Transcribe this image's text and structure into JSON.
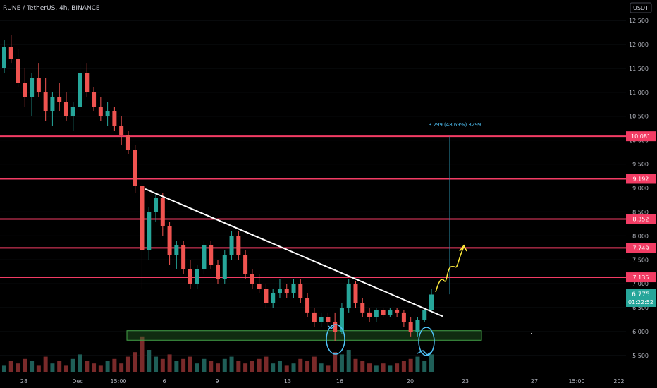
{
  "header": {
    "symbol": "RUNE / TetherUS, 4h, BINANCE",
    "currency_button": "USDT"
  },
  "colors": {
    "background": "#000000",
    "up": "#26a69a",
    "down": "#ef5350",
    "level_line": "#f23c64",
    "trendline": "#ffffff",
    "support_zone": "#2e7d32",
    "projection": "#ffeb3b",
    "annotation_circle": "#4fc3f7",
    "measure": "#2a8faa",
    "last_price_bg": "#26a69a"
  },
  "chart_data": {
    "type": "candlestick",
    "symbol": "RUNE / TetherUS",
    "interval": "4h",
    "exchange": "BINANCE",
    "y_range": [
      5.2,
      12.75
    ],
    "y_ticks": [
      "12.500",
      "12.000",
      "11.500",
      "11.000",
      "10.500",
      "10.000",
      "9.500",
      "9.000",
      "8.500",
      "8.000",
      "7.500",
      "7.000",
      "6.500",
      "6.000",
      "5.500"
    ],
    "x_ticks": [
      "28",
      "Dec",
      "15:00",
      "6",
      "9",
      "13",
      "16",
      "20",
      "23",
      "27",
      "15:00",
      "202"
    ],
    "horizontal_levels": [
      "10.081",
      "9.192",
      "8.352",
      "7.749",
      "7.135"
    ],
    "last_price": "6.775",
    "countdown": "01:22:52",
    "measure_label": "3.299 (48.69%) 3299",
    "support_zone": {
      "from": 5.82,
      "to": 6.02
    },
    "trendline": {
      "from": {
        "date": "Dec 4",
        "price": 8.98
      },
      "to": {
        "date": "Dec 21",
        "price": 6.32
      }
    },
    "candles_ohlc_approx": [
      [
        11.5,
        12.1,
        11.4,
        11.95
      ],
      [
        11.95,
        12.2,
        11.6,
        11.7
      ],
      [
        11.7,
        11.9,
        11.1,
        11.2
      ],
      [
        11.2,
        11.5,
        10.7,
        10.9
      ],
      [
        10.9,
        11.4,
        10.5,
        11.3
      ],
      [
        11.3,
        11.6,
        10.9,
        11.0
      ],
      [
        11.0,
        11.3,
        10.4,
        10.6
      ],
      [
        10.6,
        11.0,
        10.3,
        10.9
      ],
      [
        10.9,
        11.2,
        10.6,
        10.8
      ],
      [
        10.8,
        11.0,
        10.4,
        10.5
      ],
      [
        10.5,
        10.8,
        10.2,
        10.7
      ],
      [
        10.7,
        11.6,
        10.6,
        11.4
      ],
      [
        11.4,
        11.6,
        10.9,
        11.0
      ],
      [
        11.0,
        11.1,
        10.6,
        10.7
      ],
      [
        10.7,
        10.9,
        10.4,
        10.5
      ],
      [
        10.5,
        10.8,
        10.3,
        10.6
      ],
      [
        10.6,
        10.7,
        10.2,
        10.3
      ],
      [
        10.3,
        10.5,
        9.9,
        10.1
      ],
      [
        10.1,
        10.2,
        9.7,
        9.8
      ],
      [
        9.8,
        9.9,
        8.9,
        9.05
      ],
      [
        9.05,
        9.1,
        6.9,
        7.7
      ],
      [
        7.7,
        8.6,
        7.5,
        8.5
      ],
      [
        8.5,
        8.9,
        8.3,
        8.8
      ],
      [
        8.8,
        8.9,
        8.0,
        8.2
      ],
      [
        8.2,
        8.3,
        7.4,
        7.6
      ],
      [
        7.6,
        7.9,
        7.3,
        7.8
      ],
      [
        7.8,
        7.9,
        7.2,
        7.3
      ],
      [
        7.3,
        7.5,
        6.9,
        7.0
      ],
      [
        7.0,
        7.4,
        6.9,
        7.3
      ],
      [
        7.3,
        7.9,
        7.2,
        7.8
      ],
      [
        7.8,
        7.9,
        7.3,
        7.4
      ],
      [
        7.4,
        7.5,
        7.0,
        7.1
      ],
      [
        7.1,
        7.7,
        7.0,
        7.6
      ],
      [
        7.6,
        8.1,
        7.5,
        8.0
      ],
      [
        8.0,
        8.1,
        7.5,
        7.6
      ],
      [
        7.6,
        7.7,
        7.1,
        7.2
      ],
      [
        7.2,
        7.3,
        6.9,
        7.0
      ],
      [
        7.0,
        7.2,
        6.8,
        6.9
      ],
      [
        6.9,
        7.0,
        6.5,
        6.6
      ],
      [
        6.6,
        6.9,
        6.5,
        6.8
      ],
      [
        6.8,
        7.1,
        6.7,
        6.9
      ],
      [
        6.9,
        7.0,
        6.7,
        6.8
      ],
      [
        6.8,
        7.1,
        6.7,
        7.0
      ],
      [
        7.0,
        7.1,
        6.6,
        6.7
      ],
      [
        6.7,
        6.8,
        6.3,
        6.4
      ],
      [
        6.4,
        6.5,
        6.1,
        6.2
      ],
      [
        6.2,
        6.4,
        6.1,
        6.3
      ],
      [
        6.3,
        6.4,
        6.1,
        6.2
      ],
      [
        6.2,
        6.4,
        5.8,
        6.0
      ],
      [
        6.0,
        6.6,
        5.95,
        6.5
      ],
      [
        6.5,
        7.1,
        6.4,
        7.0
      ],
      [
        7.0,
        7.05,
        6.5,
        6.6
      ],
      [
        6.6,
        6.7,
        6.3,
        6.4
      ],
      [
        6.4,
        6.5,
        6.2,
        6.3
      ],
      [
        6.3,
        6.5,
        6.2,
        6.45
      ],
      [
        6.45,
        6.5,
        6.3,
        6.35
      ],
      [
        6.35,
        6.5,
        6.3,
        6.45
      ],
      [
        6.45,
        6.5,
        6.3,
        6.4
      ],
      [
        6.4,
        6.45,
        6.1,
        6.2
      ],
      [
        6.2,
        6.3,
        5.9,
        6.0
      ],
      [
        6.0,
        6.3,
        5.9,
        6.25
      ],
      [
        6.25,
        6.5,
        6.2,
        6.45
      ],
      [
        6.45,
        6.9,
        6.4,
        6.775
      ]
    ],
    "volume_approx": [
      3,
      5,
      4,
      6,
      5,
      3,
      7,
      4,
      5,
      3,
      6,
      8,
      5,
      4,
      3,
      5,
      6,
      4,
      7,
      9,
      16,
      10,
      7,
      6,
      8,
      5,
      6,
      7,
      4,
      6,
      5,
      4,
      6,
      7,
      5,
      4,
      5,
      6,
      7,
      4,
      5,
      3,
      4,
      6,
      5,
      7,
      4,
      3,
      9,
      8,
      10,
      6,
      5,
      4,
      3,
      4,
      3,
      4,
      5,
      6,
      7,
      5,
      8
    ]
  }
}
